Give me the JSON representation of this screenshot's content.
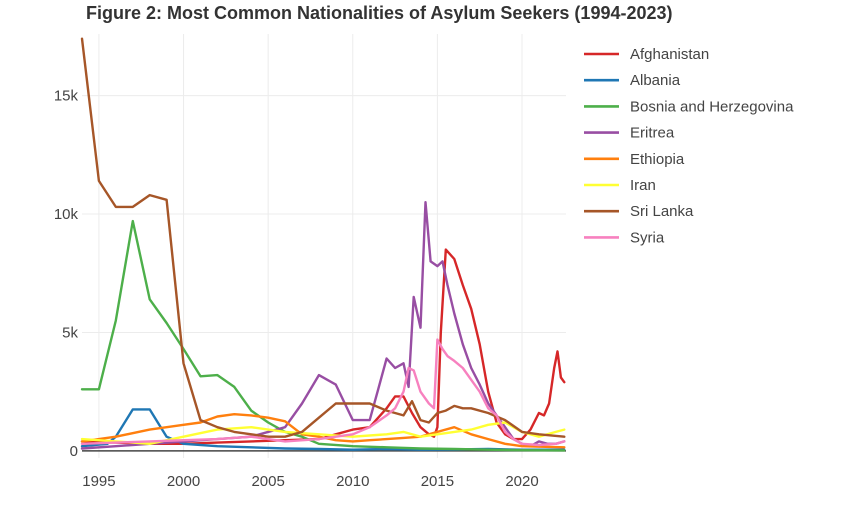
{
  "chart_data": {
    "type": "line",
    "title": "Figure 2: Most Common Nationalities of Asylum Seekers (1994-2023)",
    "xlabel": "",
    "ylabel": "",
    "xlim": [
      1994,
      2022.6
    ],
    "ylim": [
      -300,
      17600
    ],
    "x_ticks": [
      1995,
      2000,
      2005,
      2010,
      2015,
      2020
    ],
    "y_ticks": [
      0,
      5000,
      10000,
      15000
    ],
    "y_tick_labels": [
      "0",
      "5k",
      "10k",
      "15k"
    ],
    "grid": true,
    "legend_position": "right",
    "series": [
      {
        "name": "Afghanistan",
        "color": "#d62728",
        "x": [
          1994,
          1996,
          1998,
          2000,
          2002,
          2004,
          2006,
          2008,
          2009,
          2010,
          2011,
          2012,
          2012.5,
          2013,
          2013.5,
          2014,
          2014.5,
          2014.8,
          2015,
          2015.2,
          2015.5,
          2016,
          2016.5,
          2017,
          2017.5,
          2018,
          2018.5,
          2019,
          2019.5,
          2020,
          2020.5,
          2021,
          2021.3,
          2021.6,
          2021.9,
          2022.1,
          2022.3,
          2022.5
        ],
        "y": [
          400,
          350,
          300,
          300,
          350,
          400,
          450,
          500,
          700,
          900,
          1000,
          1800,
          2300,
          2300,
          1600,
          1000,
          700,
          600,
          1000,
          5000,
          8500,
          8100,
          7000,
          6000,
          4500,
          2500,
          1200,
          700,
          500,
          500,
          900,
          1600,
          1500,
          2000,
          3500,
          4200,
          3100,
          2900
        ]
      },
      {
        "name": "Albania",
        "color": "#1f77b4",
        "x": [
          1994,
          1995.5,
          1996,
          1997,
          1998,
          1999,
          2000,
          2002,
          2004,
          2006,
          2008,
          2010,
          2012,
          2014,
          2016,
          2018,
          2020,
          2022.5
        ],
        "y": [
          200,
          300,
          600,
          1750,
          1750,
          600,
          300,
          200,
          150,
          100,
          80,
          50,
          80,
          50,
          60,
          80,
          50,
          50
        ]
      },
      {
        "name": "Bosnia and Herzegovina",
        "color": "#4daf4a",
        "x": [
          1994,
          1995,
          1996,
          1997,
          1998,
          1999,
          2000,
          2001,
          2002,
          2003,
          2004,
          2005,
          2006,
          2007,
          2008,
          2010,
          2012,
          2014,
          2016,
          2018,
          2020,
          2022.5
        ],
        "y": [
          2600,
          2600,
          5500,
          9700,
          6400,
          5400,
          4300,
          3150,
          3200,
          2700,
          1700,
          1200,
          800,
          600,
          300,
          200,
          150,
          100,
          80,
          50,
          30,
          20
        ]
      },
      {
        "name": "Eritrea",
        "color": "#984ea3",
        "x": [
          1994,
          1996,
          1998,
          2000,
          2002,
          2004,
          2006,
          2007,
          2008,
          2009,
          2010,
          2011,
          2011.5,
          2012,
          2012.5,
          2013,
          2013.3,
          2013.6,
          2014,
          2014.3,
          2014.6,
          2015,
          2015.3,
          2015.6,
          2016,
          2016.5,
          2017,
          2017.5,
          2018,
          2018.5,
          2019,
          2019.5,
          2020,
          2020.5,
          2021,
          2021.5,
          2022,
          2022.5
        ],
        "y": [
          100,
          200,
          300,
          400,
          500,
          600,
          1000,
          2000,
          3200,
          2800,
          1300,
          1300,
          2600,
          3900,
          3500,
          3700,
          2700,
          6500,
          5200,
          10500,
          8000,
          7800,
          8000,
          7000,
          5800,
          4500,
          3500,
          2800,
          2000,
          1500,
          1000,
          500,
          300,
          200,
          400,
          300,
          300,
          400
        ]
      },
      {
        "name": "Ethiopia",
        "color": "#ff7f0e",
        "x": [
          1994,
          1996,
          1998,
          2000,
          2001,
          2002,
          2003,
          2004,
          2005,
          2006,
          2007,
          2008,
          2009,
          2010,
          2011,
          2012,
          2013,
          2014,
          2015,
          2016,
          2017,
          2018,
          2019,
          2020,
          2022.5
        ],
        "y": [
          400,
          600,
          900,
          1100,
          1200,
          1450,
          1550,
          1500,
          1400,
          1250,
          700,
          600,
          450,
          400,
          450,
          500,
          550,
          600,
          800,
          1000,
          700,
          500,
          300,
          200,
          150
        ]
      },
      {
        "name": "Iran",
        "color": "#ffff33",
        "x": [
          1994,
          1996,
          1998,
          2000,
          2002,
          2004,
          2006,
          2008,
          2010,
          2012,
          2013,
          2014,
          2015,
          2016,
          2017,
          2018,
          2019,
          2020,
          2021,
          2022,
          2022.5
        ],
        "y": [
          500,
          400,
          300,
          600,
          900,
          1000,
          800,
          700,
          600,
          700,
          800,
          600,
          700,
          800,
          900,
          1100,
          1200,
          800,
          600,
          800,
          900
        ]
      },
      {
        "name": "Sri Lanka",
        "color": "#a65628",
        "x": [
          1994,
          1995,
          1996,
          1997,
          1998,
          1999,
          2000,
          2001,
          2002,
          2003,
          2004,
          2005,
          2006,
          2007,
          2008,
          2009,
          2010,
          2011,
          2012,
          2013,
          2013.5,
          2014,
          2014.5,
          2015,
          2015.5,
          2016,
          2016.5,
          2017,
          2018,
          2019,
          2020,
          2021,
          2022.5
        ],
        "y": [
          17400,
          11400,
          10300,
          10300,
          10800,
          10600,
          3700,
          1300,
          1000,
          800,
          700,
          600,
          600,
          800,
          1400,
          2000,
          2000,
          2000,
          1700,
          1500,
          2100,
          1300,
          1200,
          1600,
          1700,
          1900,
          1800,
          1800,
          1600,
          1300,
          800,
          700,
          600
        ]
      },
      {
        "name": "Syria",
        "color": "#f781bf",
        "x": [
          1994,
          1996,
          1998,
          2000,
          2002,
          2004,
          2006,
          2008,
          2010,
          2011,
          2012,
          2012.5,
          2013,
          2013.3,
          2013.6,
          2014,
          2014.5,
          2014.8,
          2015,
          2015.3,
          2015.6,
          2016,
          2016.5,
          2017,
          2017.5,
          2018,
          2018.5,
          2019,
          2019.5,
          2020,
          2021,
          2022,
          2022.5
        ],
        "y": [
          300,
          350,
          400,
          450,
          500,
          600,
          400,
          500,
          700,
          1000,
          1500,
          1800,
          2500,
          3500,
          3400,
          2500,
          2000,
          1800,
          4700,
          4300,
          4000,
          3800,
          3500,
          3000,
          2500,
          1800,
          1500,
          800,
          500,
          300,
          250,
          300,
          400
        ]
      }
    ]
  }
}
